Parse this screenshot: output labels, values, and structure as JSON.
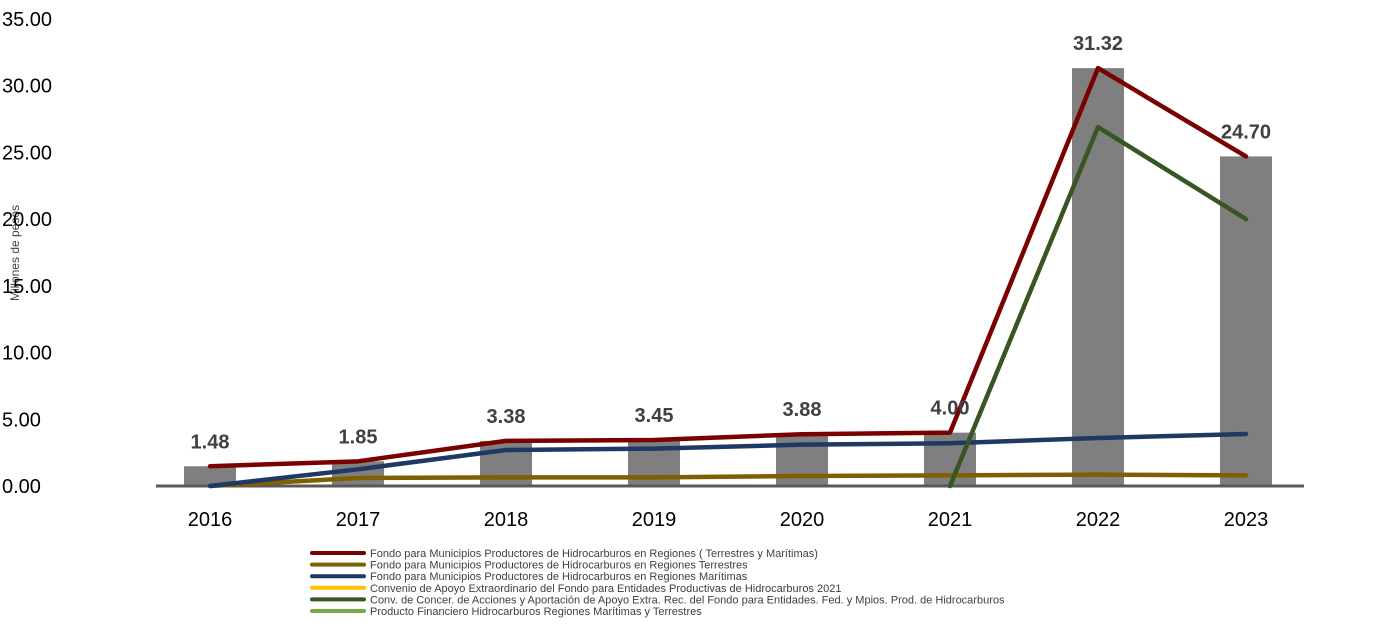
{
  "chart_data": {
    "type": "bar",
    "title": "",
    "ylabel": "Millones de pesos",
    "xlabel": "",
    "ylim": [
      0,
      35
    ],
    "yticks": [
      "0.00",
      "5.00",
      "10.00",
      "15.00",
      "20.00",
      "25.00",
      "30.00",
      "35.00"
    ],
    "categories": [
      "2016",
      "2017",
      "2018",
      "2019",
      "2020",
      "2021",
      "2022",
      "2023"
    ],
    "bars": {
      "color": "#7f7f7f",
      "values": [
        1.48,
        1.85,
        3.38,
        3.45,
        3.88,
        4.0,
        31.32,
        24.7
      ],
      "labels": [
        "1.48",
        "1.85",
        "3.38",
        "3.45",
        "3.88",
        "4.00",
        "31.32",
        "24.70"
      ]
    },
    "series": [
      {
        "name": "Fondo para Municipios Productores de Hidrocarburos en Regiones ( Terrestres y Marítimas)",
        "color": "#7b0000",
        "values": [
          1.48,
          1.85,
          3.38,
          3.45,
          3.88,
          4.0,
          31.32,
          24.7
        ]
      },
      {
        "name": "Fondo para Municipios Productores de Hidrocarburos en Regiones Terrestres",
        "color": "#7f6000",
        "values": [
          0.0,
          0.6,
          0.65,
          0.65,
          0.75,
          0.8,
          0.85,
          0.8
        ]
      },
      {
        "name": "Fondo para Municipios Productores de Hidrocarburos en Regiones Marítimas",
        "color": "#1f3864",
        "values": [
          0.0,
          1.25,
          2.7,
          2.8,
          3.1,
          3.2,
          3.6,
          3.9
        ]
      },
      {
        "name": "Convenio de Apoyo Extraordinario del Fondo para Entidades Productivas de Hidrocarburos 2021",
        "color": "#ffc000",
        "values": [
          null,
          null,
          null,
          null,
          null,
          null,
          null,
          null
        ]
      },
      {
        "name": "Conv. de Concer. de Acciones y Aportación de Apoyo Extra. Rec. del Fondo para Entidades. Fed. y Mpios. Prod. de Hidrocarburos",
        "color": "#375623",
        "values": [
          null,
          null,
          null,
          null,
          null,
          0.0,
          26.9,
          20.0
        ]
      },
      {
        "name": "Producto Financiero Hidrocarburos Regiones Marítimas y Terrestres",
        "color": "#70ad47",
        "values": [
          null,
          null,
          null,
          null,
          null,
          null,
          null,
          null
        ]
      }
    ],
    "baseline_color": "#595959",
    "legend_position": "bottom"
  }
}
